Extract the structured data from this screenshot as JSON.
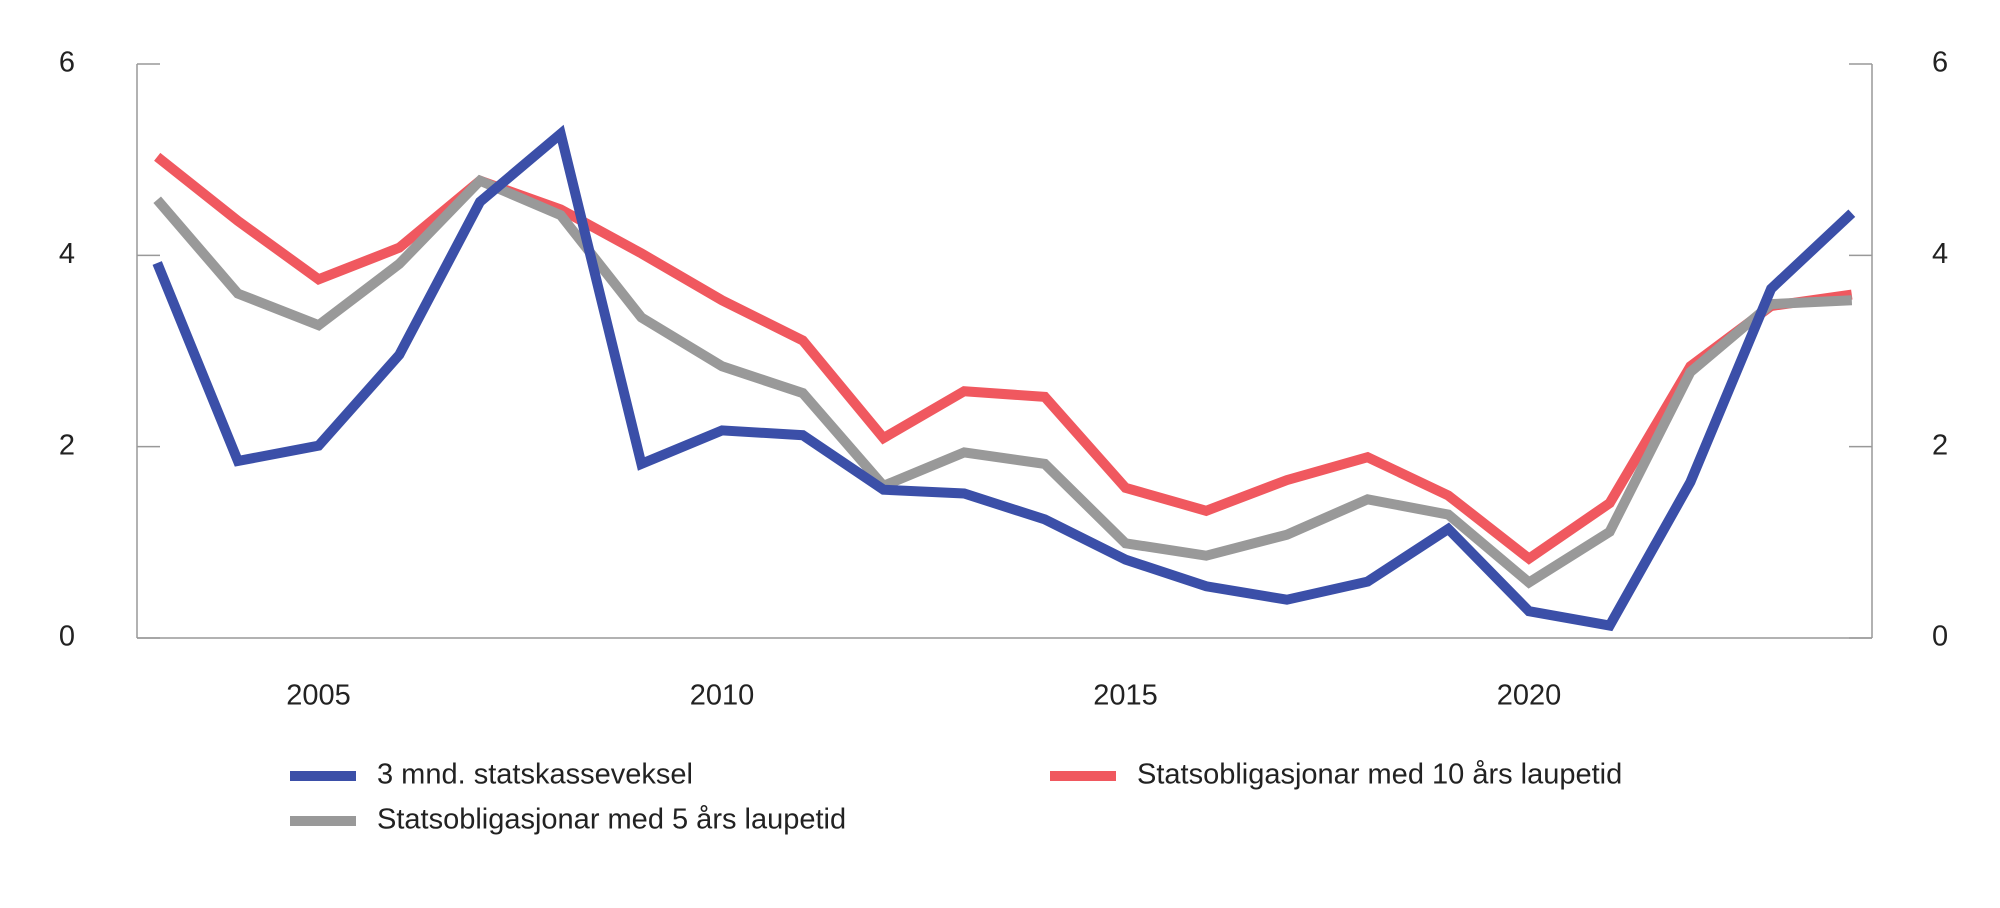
{
  "chart_data": {
    "type": "line",
    "x": [
      2003,
      2004,
      2005,
      2006,
      2007,
      2008,
      2009,
      2010,
      2011,
      2012,
      2013,
      2014,
      2015,
      2016,
      2017,
      2018,
      2019,
      2020,
      2021,
      2022,
      2023,
      2024
    ],
    "series": [
      {
        "name": "3 mnd. statskasseveksel",
        "color": "#3b4fa8",
        "values": [
          3.92,
          1.85,
          2.01,
          2.96,
          4.56,
          5.27,
          1.82,
          2.17,
          2.12,
          1.55,
          1.51,
          1.24,
          0.82,
          0.54,
          0.4,
          0.59,
          1.14,
          0.28,
          0.13,
          1.63,
          3.65,
          4.44
        ]
      },
      {
        "name": "Statsobligasjonar med 10 års laupetid",
        "color": "#f0585f",
        "values": [
          5.03,
          4.36,
          3.75,
          4.08,
          4.78,
          4.48,
          4.02,
          3.53,
          3.11,
          2.09,
          2.58,
          2.52,
          1.57,
          1.33,
          1.65,
          1.89,
          1.49,
          0.83,
          1.41,
          2.84,
          3.47,
          3.59
        ]
      },
      {
        "name": "Statsobligasjonar med 5 års laupetid",
        "color": "#999999",
        "values": [
          4.58,
          3.6,
          3.27,
          3.91,
          4.78,
          4.42,
          3.35,
          2.84,
          2.56,
          1.59,
          1.94,
          1.82,
          0.99,
          0.86,
          1.08,
          1.45,
          1.29,
          0.58,
          1.11,
          2.78,
          3.49,
          3.53
        ]
      }
    ],
    "xlim": [
      2002.75,
      2024.25
    ],
    "xticks": [
      2005,
      2010,
      2015,
      2020
    ],
    "ylim": [
      0,
      6
    ],
    "yticks": [
      0,
      2,
      4,
      6
    ],
    "y2lim": [
      0,
      6
    ],
    "y2ticks": [
      0,
      2,
      4,
      6
    ]
  }
}
